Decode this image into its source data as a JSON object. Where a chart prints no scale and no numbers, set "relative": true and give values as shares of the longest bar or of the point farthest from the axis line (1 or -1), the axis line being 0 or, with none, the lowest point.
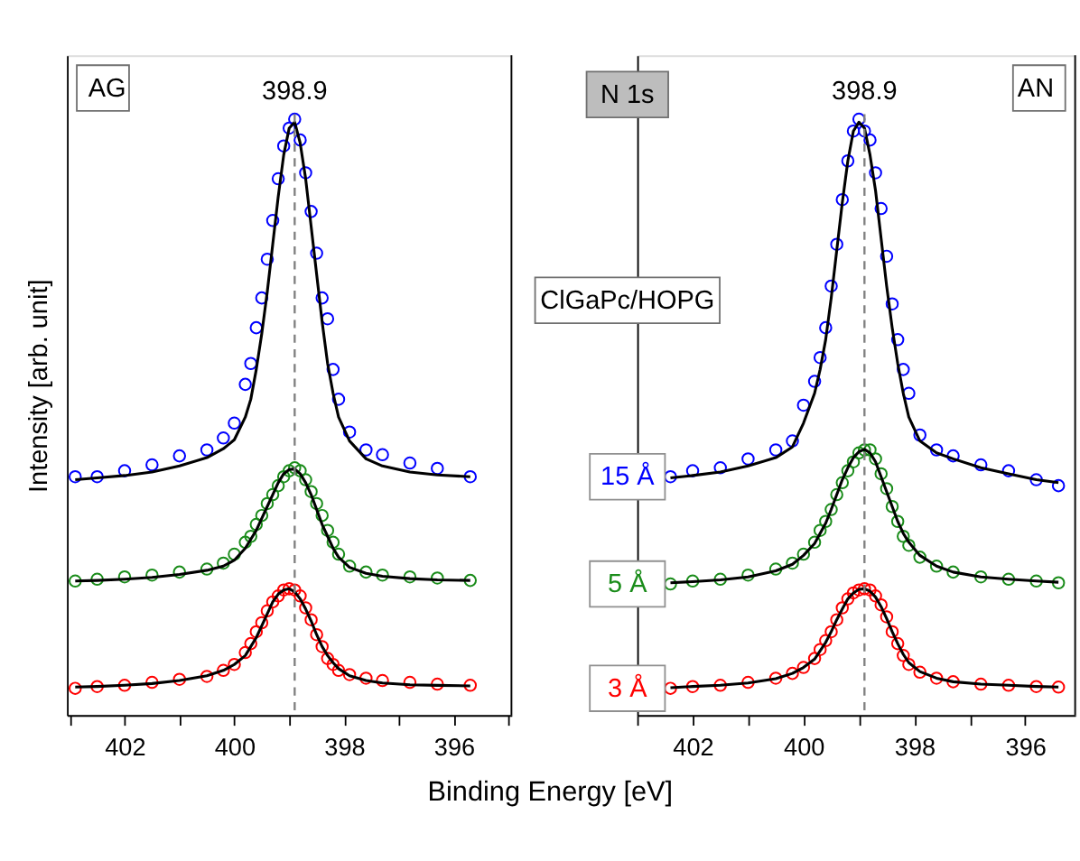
{
  "chart_data": [
    {
      "type": "scatter",
      "relative": true,
      "ylabel": "Intensity [arb. unit]",
      "xlabel": "Binding Energy [eV]",
      "tick_labels": "x",
      "xlim": [
        403.05,
        394.95
      ],
      "xticks": [
        {
          "value": 403,
          "label": null
        },
        402,
        {
          "value": 401,
          "label": null
        },
        400,
        {
          "value": 399,
          "label": null
        },
        398,
        {
          "value": 397,
          "label": null
        },
        396,
        {
          "value": 395,
          "label": null
        }
      ],
      "x": [
        402.9,
        402.5,
        402.0,
        401.5,
        401.0,
        400.5,
        400.2,
        400.0,
        399.8,
        399.7,
        399.6,
        399.5,
        399.4,
        399.3,
        399.2,
        399.1,
        399.0,
        398.9,
        398.8,
        398.7,
        398.6,
        398.5,
        398.4,
        398.3,
        398.2,
        398.1,
        397.9,
        397.6,
        397.3,
        396.8,
        396.3,
        395.7
      ],
      "series": [
        {
          "marker": "circle",
          "color": "#0000ff",
          "values": [
            0.4,
            0.4,
            0.41,
            0.42,
            0.435,
            0.445,
            0.465,
            0.49,
            0.555,
            0.59,
            0.65,
            0.7,
            0.765,
            0.83,
            0.9,
            0.955,
            0.985,
            1.0,
            0.965,
            0.91,
            0.845,
            0.775,
            0.7,
            0.665,
            0.58,
            0.53,
            0.475,
            0.445,
            0.437,
            0.423,
            0.414,
            0.4
          ]
        },
        {
          "marker": "circle",
          "color": "#1a8c1a",
          "values": [
            0.225,
            0.228,
            0.232,
            0.235,
            0.24,
            0.245,
            0.255,
            0.27,
            0.29,
            0.3,
            0.32,
            0.335,
            0.355,
            0.37,
            0.385,
            0.4,
            0.41,
            0.415,
            0.41,
            0.395,
            0.375,
            0.355,
            0.335,
            0.31,
            0.29,
            0.27,
            0.25,
            0.24,
            0.235,
            0.232,
            0.23,
            0.226
          ]
        },
        {
          "marker": "circle",
          "color": "#ff0000",
          "values": [
            0.045,
            0.048,
            0.05,
            0.055,
            0.06,
            0.065,
            0.075,
            0.085,
            0.105,
            0.12,
            0.14,
            0.155,
            0.175,
            0.19,
            0.2,
            0.21,
            0.212,
            0.21,
            0.2,
            0.18,
            0.16,
            0.135,
            0.115,
            0.095,
            0.085,
            0.075,
            0.068,
            0.062,
            0.058,
            0.055,
            0.052,
            0.05
          ]
        },
        {
          "type": "line",
          "color": "#000000",
          "values": [
            0.395,
            0.398,
            0.402,
            0.408,
            0.418,
            0.432,
            0.447,
            0.462,
            0.5,
            0.53,
            0.58,
            0.64,
            0.71,
            0.79,
            0.87,
            0.94,
            0.985,
            0.995,
            0.96,
            0.9,
            0.82,
            0.74,
            0.66,
            0.59,
            0.54,
            0.5,
            0.46,
            0.43,
            0.418,
            0.408,
            0.403,
            0.4
          ]
        },
        {
          "type": "line",
          "color": "#000000",
          "values": [
            0.225,
            0.226,
            0.228,
            0.231,
            0.236,
            0.243,
            0.25,
            0.26,
            0.28,
            0.295,
            0.31,
            0.33,
            0.35,
            0.37,
            0.39,
            0.405,
            0.412,
            0.413,
            0.405,
            0.39,
            0.37,
            0.345,
            0.32,
            0.3,
            0.28,
            0.265,
            0.248,
            0.238,
            0.233,
            0.229,
            0.227,
            0.226
          ]
        },
        {
          "type": "line",
          "color": "#000000",
          "values": [
            0.047,
            0.048,
            0.05,
            0.053,
            0.058,
            0.066,
            0.075,
            0.085,
            0.1,
            0.115,
            0.13,
            0.15,
            0.17,
            0.19,
            0.203,
            0.21,
            0.212,
            0.207,
            0.195,
            0.178,
            0.158,
            0.135,
            0.115,
            0.1,
            0.088,
            0.078,
            0.066,
            0.058,
            0.054,
            0.051,
            0.05,
            0.049
          ]
        }
      ],
      "ref_lines": [
        {
          "axis": "x",
          "value": 398.9,
          "label": "398.9",
          "color": "#808080",
          "line_style": "dashed"
        }
      ],
      "annotations": [
        "AG"
      ]
    },
    {
      "type": "scatter",
      "relative": true,
      "tick_labels": "x",
      "xlim": [
        403.0,
        395.1
      ],
      "xticks": [
        {
          "value": 403,
          "label": null
        },
        402,
        {
          "value": 401,
          "label": null
        },
        400,
        {
          "value": 399,
          "label": null
        },
        398,
        {
          "value": 397,
          "label": null
        },
        396
      ],
      "x": [
        402.4,
        402.0,
        401.5,
        401.0,
        400.5,
        400.2,
        400.0,
        399.8,
        399.7,
        399.6,
        399.5,
        399.4,
        399.3,
        399.2,
        399.1,
        399.0,
        398.9,
        398.8,
        398.7,
        398.6,
        398.5,
        398.4,
        398.3,
        398.2,
        398.1,
        397.9,
        397.6,
        397.3,
        396.8,
        396.3,
        395.8,
        395.4
      ],
      "series": [
        {
          "name": "15 Å",
          "marker": "circle",
          "color": "#0000ff",
          "values": [
            0.4,
            0.41,
            0.415,
            0.43,
            0.445,
            0.46,
            0.52,
            0.56,
            0.6,
            0.65,
            0.72,
            0.79,
            0.865,
            0.93,
            0.98,
            1.0,
            0.98,
            0.965,
            0.91,
            0.85,
            0.77,
            0.69,
            0.63,
            0.58,
            0.54,
            0.47,
            0.445,
            0.435,
            0.42,
            0.41,
            0.395,
            0.385
          ]
        },
        {
          "name": "5 Å",
          "marker": "circle",
          "color": "#1a8c1a",
          "values": [
            0.22,
            0.225,
            0.228,
            0.235,
            0.245,
            0.255,
            0.27,
            0.29,
            0.31,
            0.325,
            0.345,
            0.37,
            0.39,
            0.41,
            0.425,
            0.44,
            0.445,
            0.445,
            0.43,
            0.405,
            0.38,
            0.35,
            0.325,
            0.3,
            0.285,
            0.265,
            0.25,
            0.24,
            0.232,
            0.228,
            0.225,
            0.222
          ]
        },
        {
          "name": "3 Å",
          "marker": "circle",
          "color": "#ff0000",
          "values": [
            0.045,
            0.048,
            0.05,
            0.055,
            0.062,
            0.07,
            0.08,
            0.095,
            0.11,
            0.125,
            0.14,
            0.16,
            0.18,
            0.195,
            0.205,
            0.21,
            0.212,
            0.21,
            0.2,
            0.185,
            0.165,
            0.14,
            0.12,
            0.1,
            0.085,
            0.072,
            0.062,
            0.056,
            0.052,
            0.05,
            0.048,
            0.047
          ]
        },
        {
          "type": "line",
          "color": "#000000",
          "values": [
            0.398,
            0.402,
            0.408,
            0.418,
            0.432,
            0.45,
            0.49,
            0.54,
            0.58,
            0.63,
            0.7,
            0.78,
            0.86,
            0.93,
            0.98,
            0.995,
            0.985,
            0.94,
            0.88,
            0.8,
            0.72,
            0.65,
            0.59,
            0.54,
            0.5,
            0.46,
            0.44,
            0.43,
            0.415,
            0.405,
            0.395,
            0.39
          ]
        },
        {
          "type": "line",
          "color": "#000000",
          "values": [
            0.222,
            0.224,
            0.227,
            0.232,
            0.242,
            0.253,
            0.268,
            0.288,
            0.305,
            0.322,
            0.345,
            0.37,
            0.395,
            0.415,
            0.432,
            0.442,
            0.446,
            0.44,
            0.425,
            0.4,
            0.375,
            0.35,
            0.325,
            0.305,
            0.29,
            0.268,
            0.25,
            0.24,
            0.232,
            0.228,
            0.225,
            0.223
          ]
        },
        {
          "type": "line",
          "color": "#000000",
          "values": [
            0.046,
            0.048,
            0.05,
            0.054,
            0.061,
            0.07,
            0.08,
            0.094,
            0.108,
            0.122,
            0.14,
            0.16,
            0.178,
            0.195,
            0.205,
            0.211,
            0.212,
            0.208,
            0.198,
            0.182,
            0.162,
            0.14,
            0.12,
            0.102,
            0.088,
            0.073,
            0.062,
            0.056,
            0.052,
            0.05,
            0.048,
            0.047
          ]
        }
      ],
      "ref_lines": [
        {
          "axis": "x",
          "value": 398.9,
          "label": "398.9",
          "color": "#808080",
          "line_style": "dashed"
        }
      ],
      "annotations": [
        "AN",
        "N 1s",
        "ClGaPc/HOPG"
      ]
    }
  ]
}
